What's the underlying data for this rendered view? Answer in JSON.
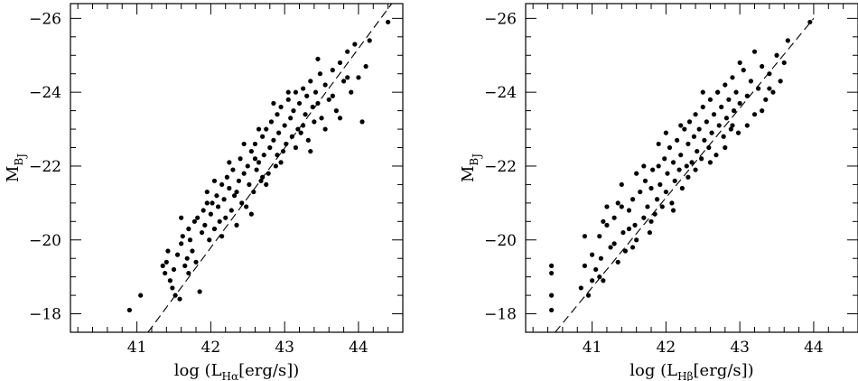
{
  "chart_data": [
    {
      "type": "scatter",
      "title": "",
      "xlabel": {
        "prefix": "log (L",
        "subscript": "Hα",
        "suffix": "[erg/s])"
      },
      "ylabel": {
        "main": "M",
        "subscript": "B",
        "subsubscript": "J"
      },
      "xlim": [
        40.1,
        44.6
      ],
      "ylim": [
        -17.5,
        -26.4
      ],
      "xticks_major": [
        41,
        42,
        43,
        44
      ],
      "xtick_labels": [
        "41",
        "42",
        "43",
        "44"
      ],
      "yticks_major": [
        -18,
        -20,
        -22,
        -24,
        -26
      ],
      "ytick_labels": [
        "−18",
        "−20",
        "−22",
        "−24",
        "−26"
      ],
      "fit_line": {
        "x": [
          41.15,
          44.45
        ],
        "y": [
          -17.5,
          -26.4
        ]
      },
      "grid": false,
      "points": [
        [
          40.9,
          -18.1
        ],
        [
          41.05,
          -18.5
        ],
        [
          41.35,
          -19.3
        ],
        [
          41.38,
          -19.1
        ],
        [
          41.4,
          -19.4
        ],
        [
          41.42,
          -19.7
        ],
        [
          41.45,
          -18.9
        ],
        [
          41.48,
          -18.7
        ],
        [
          41.5,
          -19.2
        ],
        [
          41.52,
          -18.5
        ],
        [
          41.55,
          -19.6
        ],
        [
          41.58,
          -18.4
        ],
        [
          41.6,
          -19.9
        ],
        [
          41.62,
          -20.1
        ],
        [
          41.65,
          -19.3
        ],
        [
          41.68,
          -19.5
        ],
        [
          41.7,
          -20.3
        ],
        [
          41.72,
          -20.0
        ],
        [
          41.75,
          -19.7
        ],
        [
          41.78,
          -20.5
        ],
        [
          41.8,
          -19.4
        ],
        [
          41.82,
          -20.6
        ],
        [
          41.85,
          -18.6
        ],
        [
          41.88,
          -20.2
        ],
        [
          41.9,
          -20.8
        ],
        [
          41.92,
          -20.4
        ],
        [
          41.95,
          -21.3
        ],
        [
          41.98,
          -20.0
        ],
        [
          42.0,
          -20.7
        ],
        [
          42.02,
          -21.0
        ],
        [
          42.05,
          -20.3
        ],
        [
          42.08,
          -21.2
        ],
        [
          42.1,
          -20.9
        ],
        [
          42.12,
          -20.5
        ],
        [
          42.15,
          -21.5
        ],
        [
          42.18,
          -21.1
        ],
        [
          42.2,
          -20.6
        ],
        [
          42.22,
          -21.7
        ],
        [
          42.25,
          -21.4
        ],
        [
          42.28,
          -20.8
        ],
        [
          42.3,
          -21.9
        ],
        [
          42.32,
          -21.2
        ],
        [
          42.35,
          -20.4
        ],
        [
          42.38,
          -21.6
        ],
        [
          42.4,
          -22.2
        ],
        [
          42.42,
          -21.0
        ],
        [
          42.45,
          -21.8
        ],
        [
          42.48,
          -20.9
        ],
        [
          42.5,
          -22.0
        ],
        [
          42.52,
          -21.5
        ],
        [
          42.55,
          -22.4
        ],
        [
          42.58,
          -21.3
        ],
        [
          42.6,
          -22.6
        ],
        [
          42.62,
          -21.9
        ],
        [
          42.65,
          -22.1
        ],
        [
          42.68,
          -21.6
        ],
        [
          42.7,
          -22.8
        ],
        [
          42.72,
          -22.3
        ],
        [
          42.75,
          -23.0
        ],
        [
          42.78,
          -21.8
        ],
        [
          42.8,
          -22.5
        ],
        [
          42.82,
          -23.2
        ],
        [
          42.85,
          -22.7
        ],
        [
          42.88,
          -22.0
        ],
        [
          42.9,
          -23.4
        ],
        [
          42.92,
          -22.9
        ],
        [
          42.95,
          -23.6
        ],
        [
          42.98,
          -22.4
        ],
        [
          43.0,
          -23.1
        ],
        [
          43.02,
          -22.6
        ],
        [
          43.05,
          -23.8
        ],
        [
          43.08,
          -23.3
        ],
        [
          43.1,
          -22.8
        ],
        [
          43.12,
          -23.5
        ],
        [
          43.15,
          -24.0
        ],
        [
          43.18,
          -23.0
        ],
        [
          43.2,
          -23.7
        ],
        [
          43.22,
          -22.9
        ],
        [
          43.25,
          -24.1
        ],
        [
          43.28,
          -23.4
        ],
        [
          43.3,
          -23.9
        ],
        [
          43.32,
          -22.7
        ],
        [
          43.35,
          -24.3
        ],
        [
          43.38,
          -23.6
        ],
        [
          43.4,
          -23.2
        ],
        [
          43.42,
          -24.0
        ],
        [
          43.45,
          -23.7
        ],
        [
          43.48,
          -24.5
        ],
        [
          43.5,
          -23.3
        ],
        [
          43.55,
          -24.2
        ],
        [
          43.6,
          -23.8
        ],
        [
          43.65,
          -24.6
        ],
        [
          43.7,
          -23.5
        ],
        [
          43.75,
          -24.8
        ],
        [
          43.8,
          -24.3
        ],
        [
          43.85,
          -25.1
        ],
        [
          43.9,
          -24.0
        ],
        [
          43.95,
          -25.3
        ],
        [
          44.0,
          -24.4
        ],
        [
          44.05,
          -23.2
        ],
        [
          44.1,
          -24.7
        ],
        [
          44.15,
          -25.4
        ],
        [
          44.4,
          -25.9
        ],
        [
          41.6,
          -20.6
        ],
        [
          41.7,
          -19.1
        ],
        [
          41.95,
          -21.0
        ],
        [
          42.05,
          -21.6
        ],
        [
          42.15,
          -20.1
        ],
        [
          42.25,
          -22.1
        ],
        [
          42.35,
          -21.3
        ],
        [
          42.45,
          -22.6
        ],
        [
          42.55,
          -20.7
        ],
        [
          42.65,
          -23.0
        ],
        [
          42.75,
          -21.5
        ],
        [
          42.85,
          -23.7
        ],
        [
          42.95,
          -22.1
        ],
        [
          43.05,
          -24.0
        ],
        [
          43.15,
          -22.5
        ],
        [
          43.25,
          -23.1
        ],
        [
          43.35,
          -22.4
        ],
        [
          43.45,
          -24.9
        ],
        [
          43.55,
          -23.0
        ],
        [
          43.65,
          -23.9
        ],
        [
          43.75,
          -23.3
        ],
        [
          43.85,
          -24.4
        ],
        [
          42.6,
          -22.2
        ],
        [
          42.7,
          -21.7
        ],
        [
          42.9,
          -22.3
        ]
      ]
    },
    {
      "type": "scatter",
      "title": "",
      "xlabel": {
        "prefix": "log (L",
        "subscript": "Hβ",
        "suffix": "[erg/s])"
      },
      "ylabel": {
        "main": "M",
        "subscript": "B",
        "subsubscript": "J"
      },
      "xlim": [
        40.1,
        44.6
      ],
      "ylim": [
        -17.5,
        -26.4
      ],
      "xticks_major": [
        41,
        42,
        43,
        44
      ],
      "xtick_labels": [
        "41",
        "42",
        "43",
        "44"
      ],
      "yticks_major": [
        -18,
        -20,
        -22,
        -24,
        -26
      ],
      "ytick_labels": [
        "−18",
        "−20",
        "−22",
        "−24",
        "−26"
      ],
      "fit_line": {
        "x": [
          40.5,
          44.0
        ],
        "y": [
          -17.5,
          -26.0
        ]
      },
      "grid": false,
      "points": [
        [
          40.45,
          -18.1
        ],
        [
          40.45,
          -18.5
        ],
        [
          40.45,
          -19.1
        ],
        [
          40.45,
          -19.3
        ],
        [
          40.85,
          -18.7
        ],
        [
          40.9,
          -19.3
        ],
        [
          40.95,
          -18.5
        ],
        [
          41.0,
          -19.6
        ],
        [
          41.05,
          -19.2
        ],
        [
          41.1,
          -20.1
        ],
        [
          41.12,
          -19.5
        ],
        [
          41.15,
          -18.9
        ],
        [
          41.2,
          -20.4
        ],
        [
          41.25,
          -19.8
        ],
        [
          41.3,
          -20.6
        ],
        [
          41.35,
          -19.4
        ],
        [
          41.4,
          -20.9
        ],
        [
          41.42,
          -20.2
        ],
        [
          41.45,
          -19.7
        ],
        [
          41.5,
          -20.8
        ],
        [
          41.55,
          -21.1
        ],
        [
          41.58,
          -20.4
        ],
        [
          41.6,
          -20.0
        ],
        [
          41.65,
          -21.3
        ],
        [
          41.7,
          -20.6
        ],
        [
          41.72,
          -21.6
        ],
        [
          41.75,
          -20.9
        ],
        [
          41.78,
          -20.2
        ],
        [
          41.8,
          -21.4
        ],
        [
          41.82,
          -21.9
        ],
        [
          41.85,
          -20.7
        ],
        [
          41.88,
          -21.1
        ],
        [
          41.9,
          -22.0
        ],
        [
          41.92,
          -21.5
        ],
        [
          41.95,
          -20.9
        ],
        [
          41.98,
          -22.2
        ],
        [
          42.0,
          -21.3
        ],
        [
          42.02,
          -21.8
        ],
        [
          42.05,
          -22.5
        ],
        [
          42.08,
          -21.0
        ],
        [
          42.1,
          -22.1
        ],
        [
          42.12,
          -21.6
        ],
        [
          42.15,
          -22.7
        ],
        [
          42.18,
          -21.9
        ],
        [
          42.2,
          -22.3
        ],
        [
          42.22,
          -21.4
        ],
        [
          42.25,
          -23.0
        ],
        [
          42.28,
          -22.0
        ],
        [
          42.3,
          -22.6
        ],
        [
          42.32,
          -23.2
        ],
        [
          42.35,
          -22.1
        ],
        [
          42.38,
          -22.8
        ],
        [
          42.4,
          -23.4
        ],
        [
          42.42,
          -22.4
        ],
        [
          42.45,
          -23.0
        ],
        [
          42.48,
          -22.2
        ],
        [
          42.5,
          -23.6
        ],
        [
          42.52,
          -22.7
        ],
        [
          42.55,
          -23.2
        ],
        [
          42.58,
          -22.5
        ],
        [
          42.6,
          -23.8
        ],
        [
          42.62,
          -22.9
        ],
        [
          42.65,
          -23.4
        ],
        [
          42.68,
          -22.3
        ],
        [
          42.7,
          -24.0
        ],
        [
          42.72,
          -23.1
        ],
        [
          42.75,
          -23.6
        ],
        [
          42.78,
          -22.8
        ],
        [
          42.8,
          -24.2
        ],
        [
          42.82,
          -23.3
        ],
        [
          42.85,
          -23.8
        ],
        [
          42.88,
          -23.0
        ],
        [
          42.9,
          -24.4
        ],
        [
          42.92,
          -23.5
        ],
        [
          42.95,
          -24.0
        ],
        [
          42.98,
          -22.9
        ],
        [
          43.0,
          -23.7
        ],
        [
          43.05,
          -24.6
        ],
        [
          43.1,
          -23.9
        ],
        [
          43.15,
          -24.3
        ],
        [
          43.2,
          -23.4
        ],
        [
          43.25,
          -24.1
        ],
        [
          43.3,
          -24.7
        ],
        [
          43.35,
          -23.8
        ],
        [
          43.4,
          -24.5
        ],
        [
          43.45,
          -24.0
        ],
        [
          43.5,
          -25.0
        ],
        [
          43.55,
          -24.3
        ],
        [
          43.6,
          -24.8
        ],
        [
          43.65,
          -25.4
        ],
        [
          43.95,
          -25.9
        ],
        [
          41.1,
          -19.0
        ],
        [
          41.2,
          -20.9
        ],
        [
          41.3,
          -19.9
        ],
        [
          41.4,
          -21.5
        ],
        [
          41.5,
          -20.3
        ],
        [
          41.6,
          -21.8
        ],
        [
          41.7,
          -22.0
        ],
        [
          41.8,
          -20.5
        ],
        [
          41.9,
          -22.6
        ],
        [
          42.0,
          -22.9
        ],
        [
          42.1,
          -20.8
        ],
        [
          42.2,
          -23.1
        ],
        [
          42.3,
          -21.7
        ],
        [
          42.4,
          -21.9
        ],
        [
          42.5,
          -24.0
        ],
        [
          42.6,
          -22.1
        ],
        [
          42.7,
          -24.0
        ],
        [
          42.8,
          -22.5
        ],
        [
          42.9,
          -23.1
        ],
        [
          43.0,
          -24.8
        ],
        [
          43.1,
          -23.1
        ],
        [
          43.2,
          -25.1
        ],
        [
          43.3,
          -23.5
        ],
        [
          43.4,
          -24.1
        ],
        [
          40.9,
          -20.1
        ],
        [
          41.0,
          -18.9
        ],
        [
          41.15,
          -20.5
        ],
        [
          41.35,
          -21.0
        ],
        [
          41.55,
          -19.8
        ]
      ]
    }
  ]
}
